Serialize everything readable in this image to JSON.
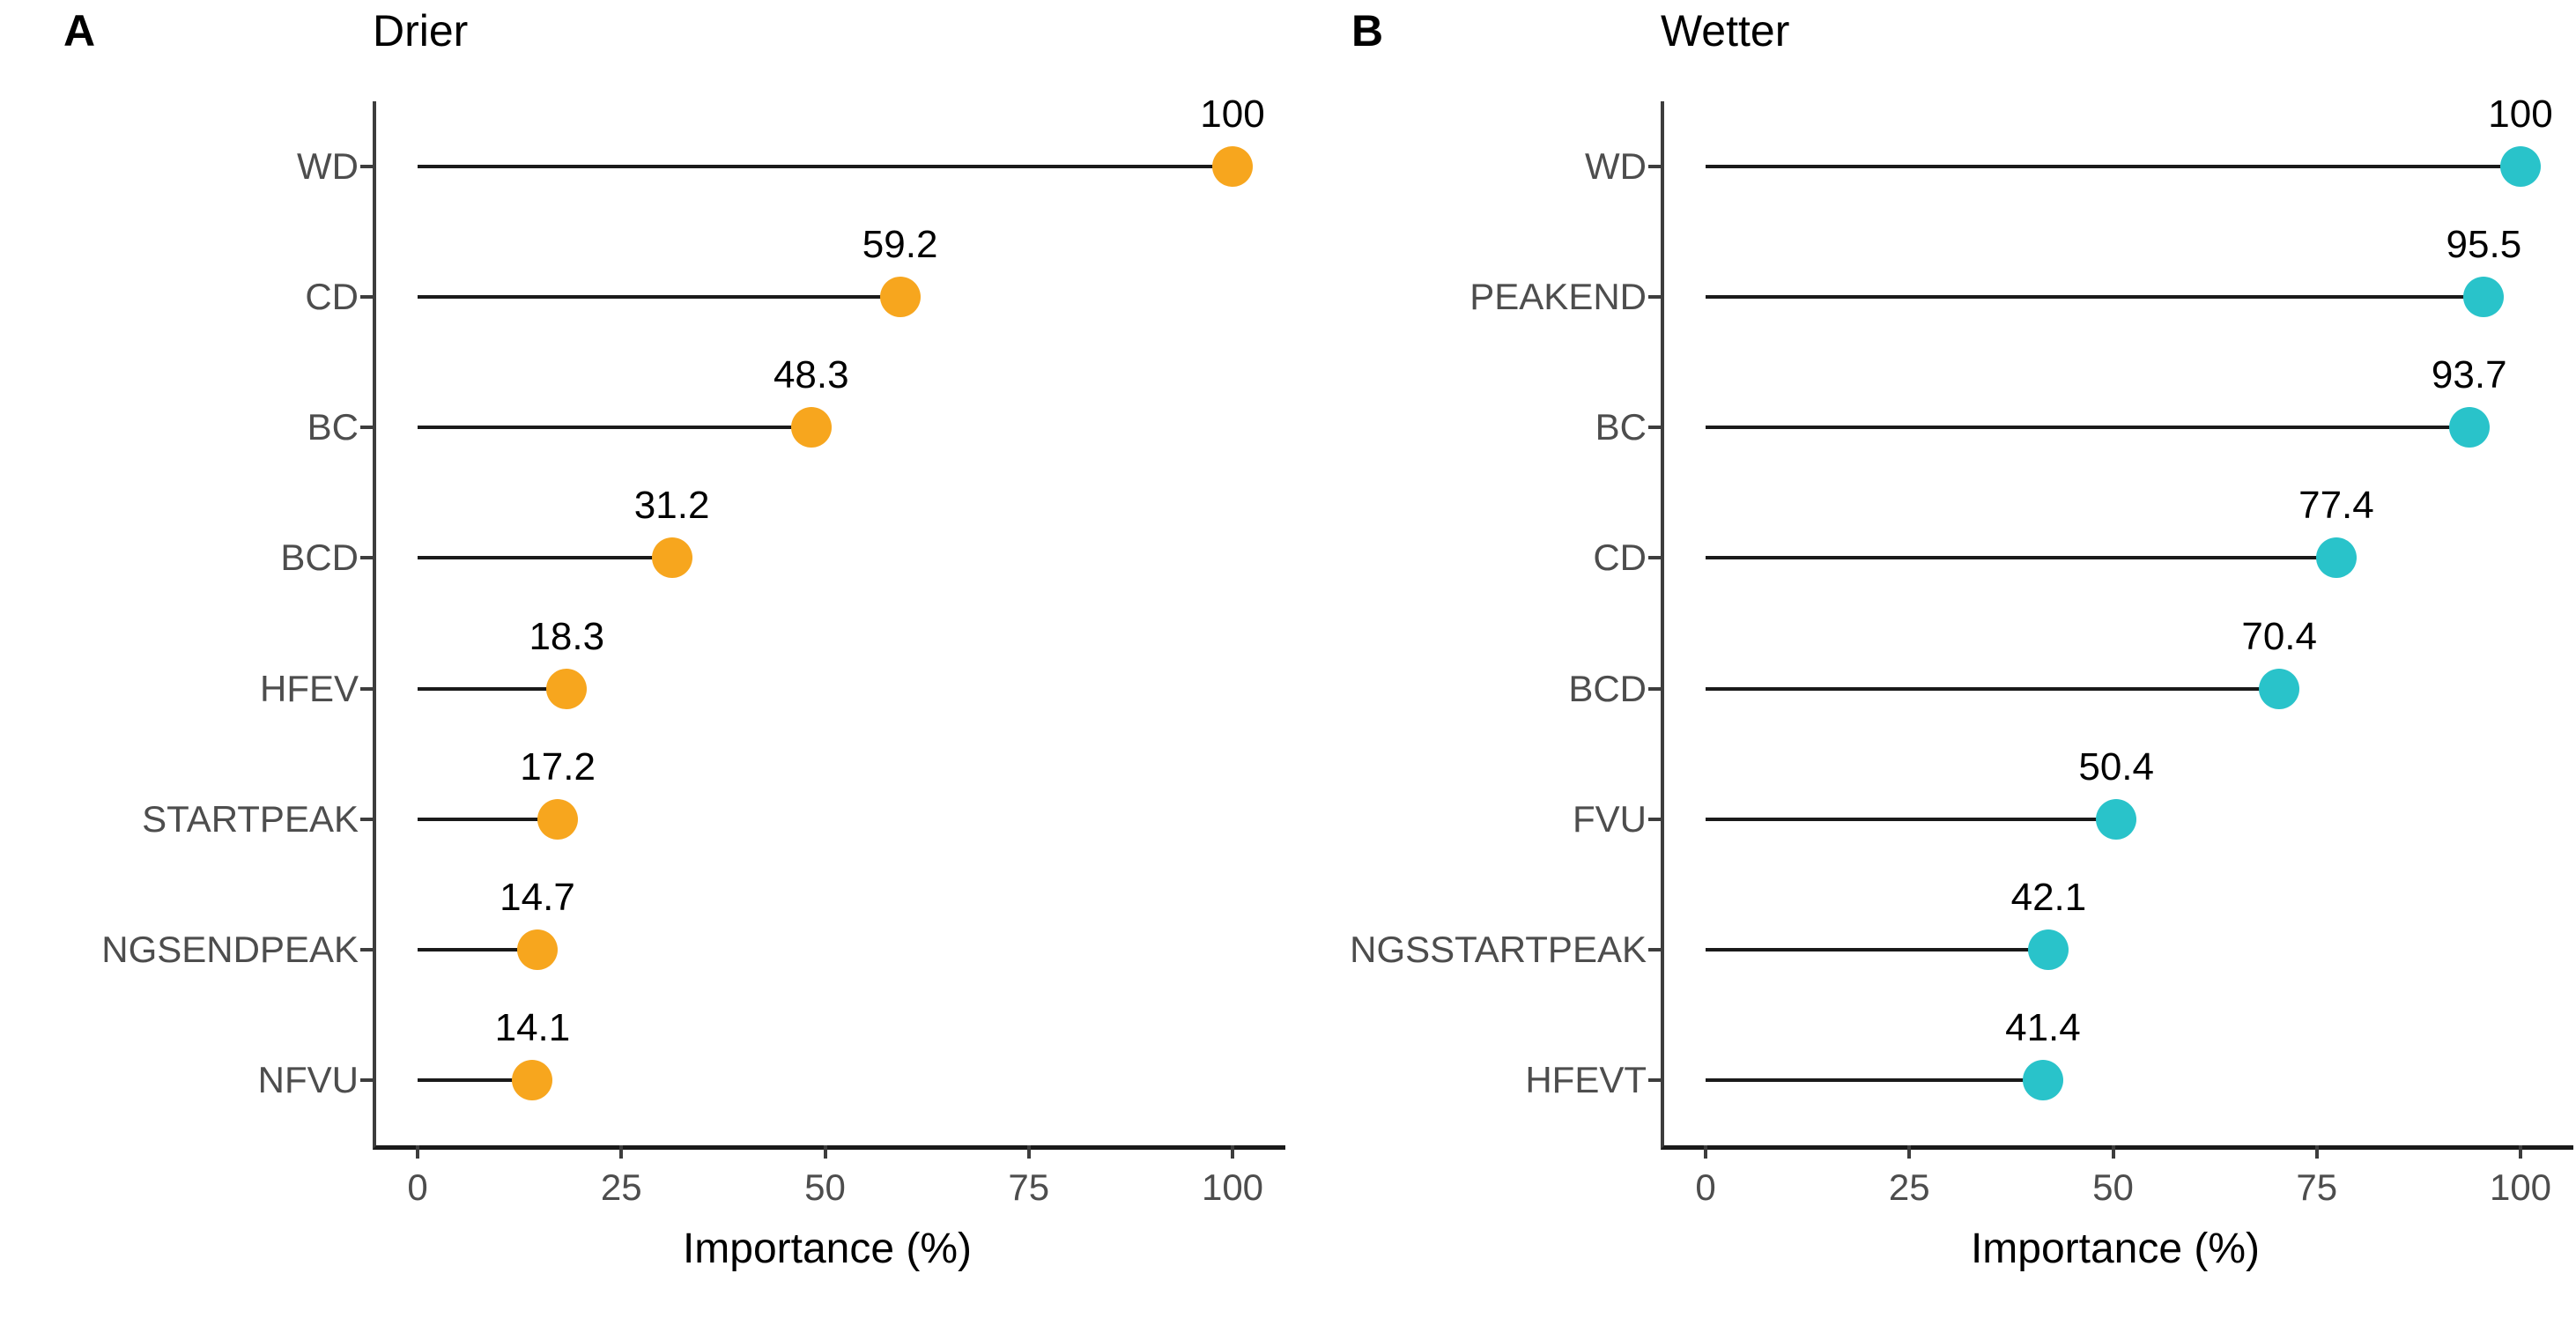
{
  "chart_data": [
    {
      "type": "lollipop",
      "orientation": "horizontal",
      "panel_letter": "A",
      "title": "Drier",
      "categories": [
        "WD",
        "CD",
        "BC",
        "BCD",
        "HFEV",
        "STARTPEAK",
        "NGSENDPEAK",
        "NFVU"
      ],
      "values": [
        100,
        59.2,
        48.3,
        31.2,
        18.3,
        17.2,
        14.7,
        14.1
      ],
      "value_labels": [
        "100",
        "59.2",
        "48.3",
        "31.2",
        "18.3",
        "17.2",
        "14.7",
        "14.1"
      ],
      "xlabel": "Importance (%)",
      "x_ticks": [
        0,
        25,
        50,
        75,
        100
      ],
      "xlim": [
        0,
        100
      ],
      "dot_color": "#F7A61E",
      "stem_color": "#1a1a1a",
      "grid": false,
      "legend": "none"
    },
    {
      "type": "lollipop",
      "orientation": "horizontal",
      "panel_letter": "B",
      "title": "Wetter",
      "categories": [
        "WD",
        "PEAKEND",
        "BC",
        "CD",
        "BCD",
        "FVU",
        "NGSSTARTPEAK",
        "HFEVT"
      ],
      "values": [
        100,
        95.5,
        93.7,
        77.4,
        70.4,
        50.4,
        42.1,
        41.4
      ],
      "value_labels": [
        "100",
        "95.5",
        "93.7",
        "77.4",
        "70.4",
        "50.4",
        "42.1",
        "41.4"
      ],
      "xlabel": "Importance (%)",
      "x_ticks": [
        0,
        25,
        50,
        75,
        100
      ],
      "xlim": [
        0,
        100
      ],
      "dot_color": "#29C3CA",
      "stem_color": "#1a1a1a",
      "grid": false,
      "legend": "none"
    }
  ]
}
